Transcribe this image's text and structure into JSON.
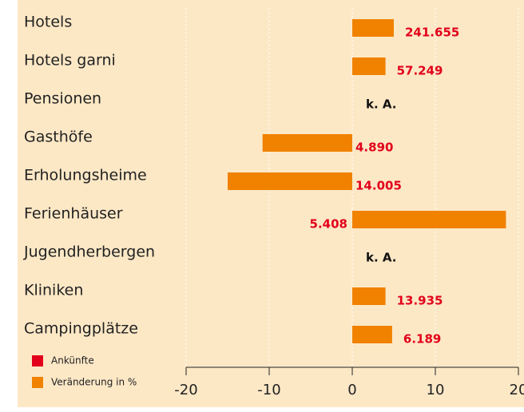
{
  "chart_data": {
    "type": "bar",
    "orientation": "horizontal",
    "categories": [
      "Hotels",
      "Hotels garni",
      "Pensionen",
      "Gasthöfe",
      "Erholungsheime",
      "Ferienhäuser",
      "Jugendherbergen",
      "Kliniken",
      "Campingplätze"
    ],
    "series": [
      {
        "name": "Ankünfte",
        "color": "#e2001a",
        "values": [
          241655,
          57249,
          null,
          4890,
          14005,
          5408,
          null,
          13935,
          6189
        ],
        "value_labels": [
          "241.655",
          "57.249",
          "k. A.",
          "4.890",
          "14.005",
          "5.408",
          "k. A.",
          "13.935",
          "6.189"
        ]
      },
      {
        "name": "Veränderung in %",
        "color": "#f08200",
        "values": [
          5,
          4,
          null,
          -10.8,
          -15,
          18.5,
          null,
          4,
          4.8
        ]
      }
    ],
    "xlim": [
      -20,
      20
    ],
    "xticks": [
      -20,
      -10,
      0,
      10,
      20
    ],
    "grid": true
  }
}
